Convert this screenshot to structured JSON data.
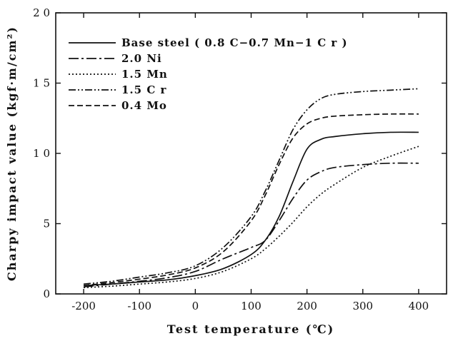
{
  "chart_data": {
    "type": "line",
    "title": "",
    "xlabel": "Test temperature (℃)",
    "ylabel": "Charpy impact value (kgf·m/cm²)",
    "xlim": [
      -250,
      450
    ],
    "ylim": [
      0,
      20
    ],
    "xticks": [
      -200,
      -100,
      0,
      100,
      200,
      300,
      400
    ],
    "yticks": [
      0,
      5,
      10,
      15,
      20
    ],
    "xtick_labels": [
      "-200",
      "-100",
      "0",
      "100",
      "200",
      "300",
      "400"
    ],
    "ytick_labels": [
      "0",
      "5",
      "1 0",
      "1 5",
      "2 0"
    ],
    "grid": false,
    "legend_position": "top-left",
    "x": [
      -200,
      -150,
      -100,
      -50,
      0,
      50,
      100,
      125,
      150,
      175,
      200,
      225,
      250,
      300,
      350,
      400
    ],
    "series": [
      {
        "name": "Base steel ( 0.8 C−0.7 Mn−1 C r )",
        "dash": "",
        "values": [
          0.6,
          0.7,
          0.85,
          1.0,
          1.3,
          1.8,
          2.8,
          3.8,
          5.5,
          8.0,
          10.3,
          11.0,
          11.2,
          11.4,
          11.5,
          11.5
        ]
      },
      {
        "name": "2.0 Ni",
        "dash": "14 4 3 4",
        "values": [
          0.5,
          0.7,
          0.9,
          1.15,
          1.6,
          2.5,
          3.3,
          3.8,
          5.2,
          6.8,
          8.1,
          8.7,
          9.0,
          9.2,
          9.3,
          9.3
        ]
      },
      {
        "name": "1.5 Mn",
        "dash": "2 3",
        "values": [
          0.45,
          0.55,
          0.7,
          0.85,
          1.1,
          1.6,
          2.5,
          3.2,
          4.1,
          5.1,
          6.2,
          7.1,
          7.8,
          9.0,
          9.8,
          10.5
        ]
      },
      {
        "name": "1.5 C r",
        "dash": "10 3 2 3 2 3",
        "values": [
          0.7,
          0.9,
          1.2,
          1.5,
          2.0,
          3.3,
          5.5,
          7.3,
          9.5,
          11.7,
          13.1,
          13.9,
          14.2,
          14.4,
          14.5,
          14.6
        ]
      },
      {
        "name": "0.4 Mo",
        "dash": "8 4",
        "values": [
          0.6,
          0.8,
          1.05,
          1.35,
          1.85,
          3.0,
          5.2,
          7.0,
          9.2,
          11.1,
          12.1,
          12.5,
          12.65,
          12.75,
          12.8,
          12.8
        ]
      }
    ]
  }
}
